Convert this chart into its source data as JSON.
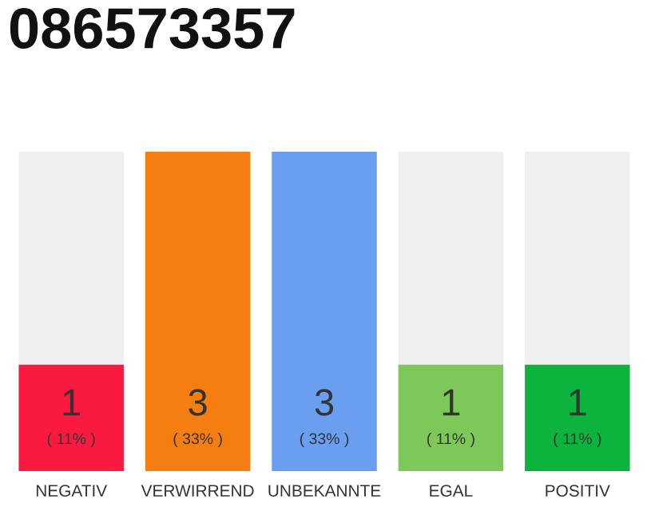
{
  "chart_data": {
    "type": "bar",
    "title": "086573357",
    "categories": [
      "NEGATIV",
      "VERWIRREND",
      "UNBEKANNTE",
      "EGAL",
      "POSITIV"
    ],
    "values": [
      1,
      3,
      3,
      1,
      1
    ],
    "colors": [
      "#fb1a3f",
      "#f47f10",
      "#6a9ff0",
      "#7ec85a",
      "#0cb43e"
    ],
    "value_labels": [
      "1\n( 11% )",
      "3\n( 33% )",
      "3\n( 33% )",
      "1\n( 11% )",
      "1\n( 11% )"
    ],
    "ylim": [
      0,
      3
    ],
    "tick_labels": "x",
    "grid": false,
    "legend": false
  }
}
